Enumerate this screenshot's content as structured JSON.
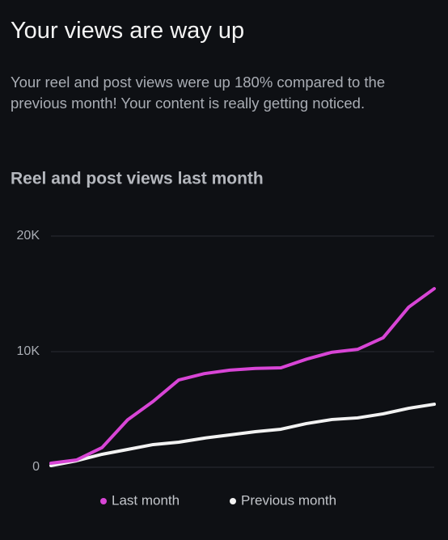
{
  "header": {
    "title": "Your views are way up",
    "text": "Your reel and post views were up 180% compared to the previous month! Your content is really getting noticed."
  },
  "chart_data": {
    "type": "line",
    "title": "Reel and post views last month",
    "categories": [
      null,
      null,
      null,
      null,
      null,
      null,
      null,
      null,
      null,
      null,
      null,
      null,
      null,
      null,
      null,
      null
    ],
    "series": [
      {
        "name": "Last month",
        "color": "#d845d6",
        "values": [
          350,
          630,
          1700,
          4100,
          5700,
          7550,
          8100,
          8400,
          8550,
          8600,
          9350,
          9950,
          10200,
          11200,
          13850,
          15450
        ]
      },
      {
        "name": "Previous month",
        "color": "#f2f2f2",
        "values": [
          140,
          560,
          1120,
          1540,
          1960,
          2170,
          2520,
          2800,
          3080,
          3290,
          3780,
          4130,
          4270,
          4620,
          5100,
          5450
        ]
      }
    ],
    "ylim": [
      0,
      20000
    ],
    "yticks": [
      0,
      {
        "value": 10000,
        "label": "10K"
      },
      {
        "value": 20000,
        "label": "20K"
      }
    ],
    "grid": true,
    "legend": "bottom"
  }
}
